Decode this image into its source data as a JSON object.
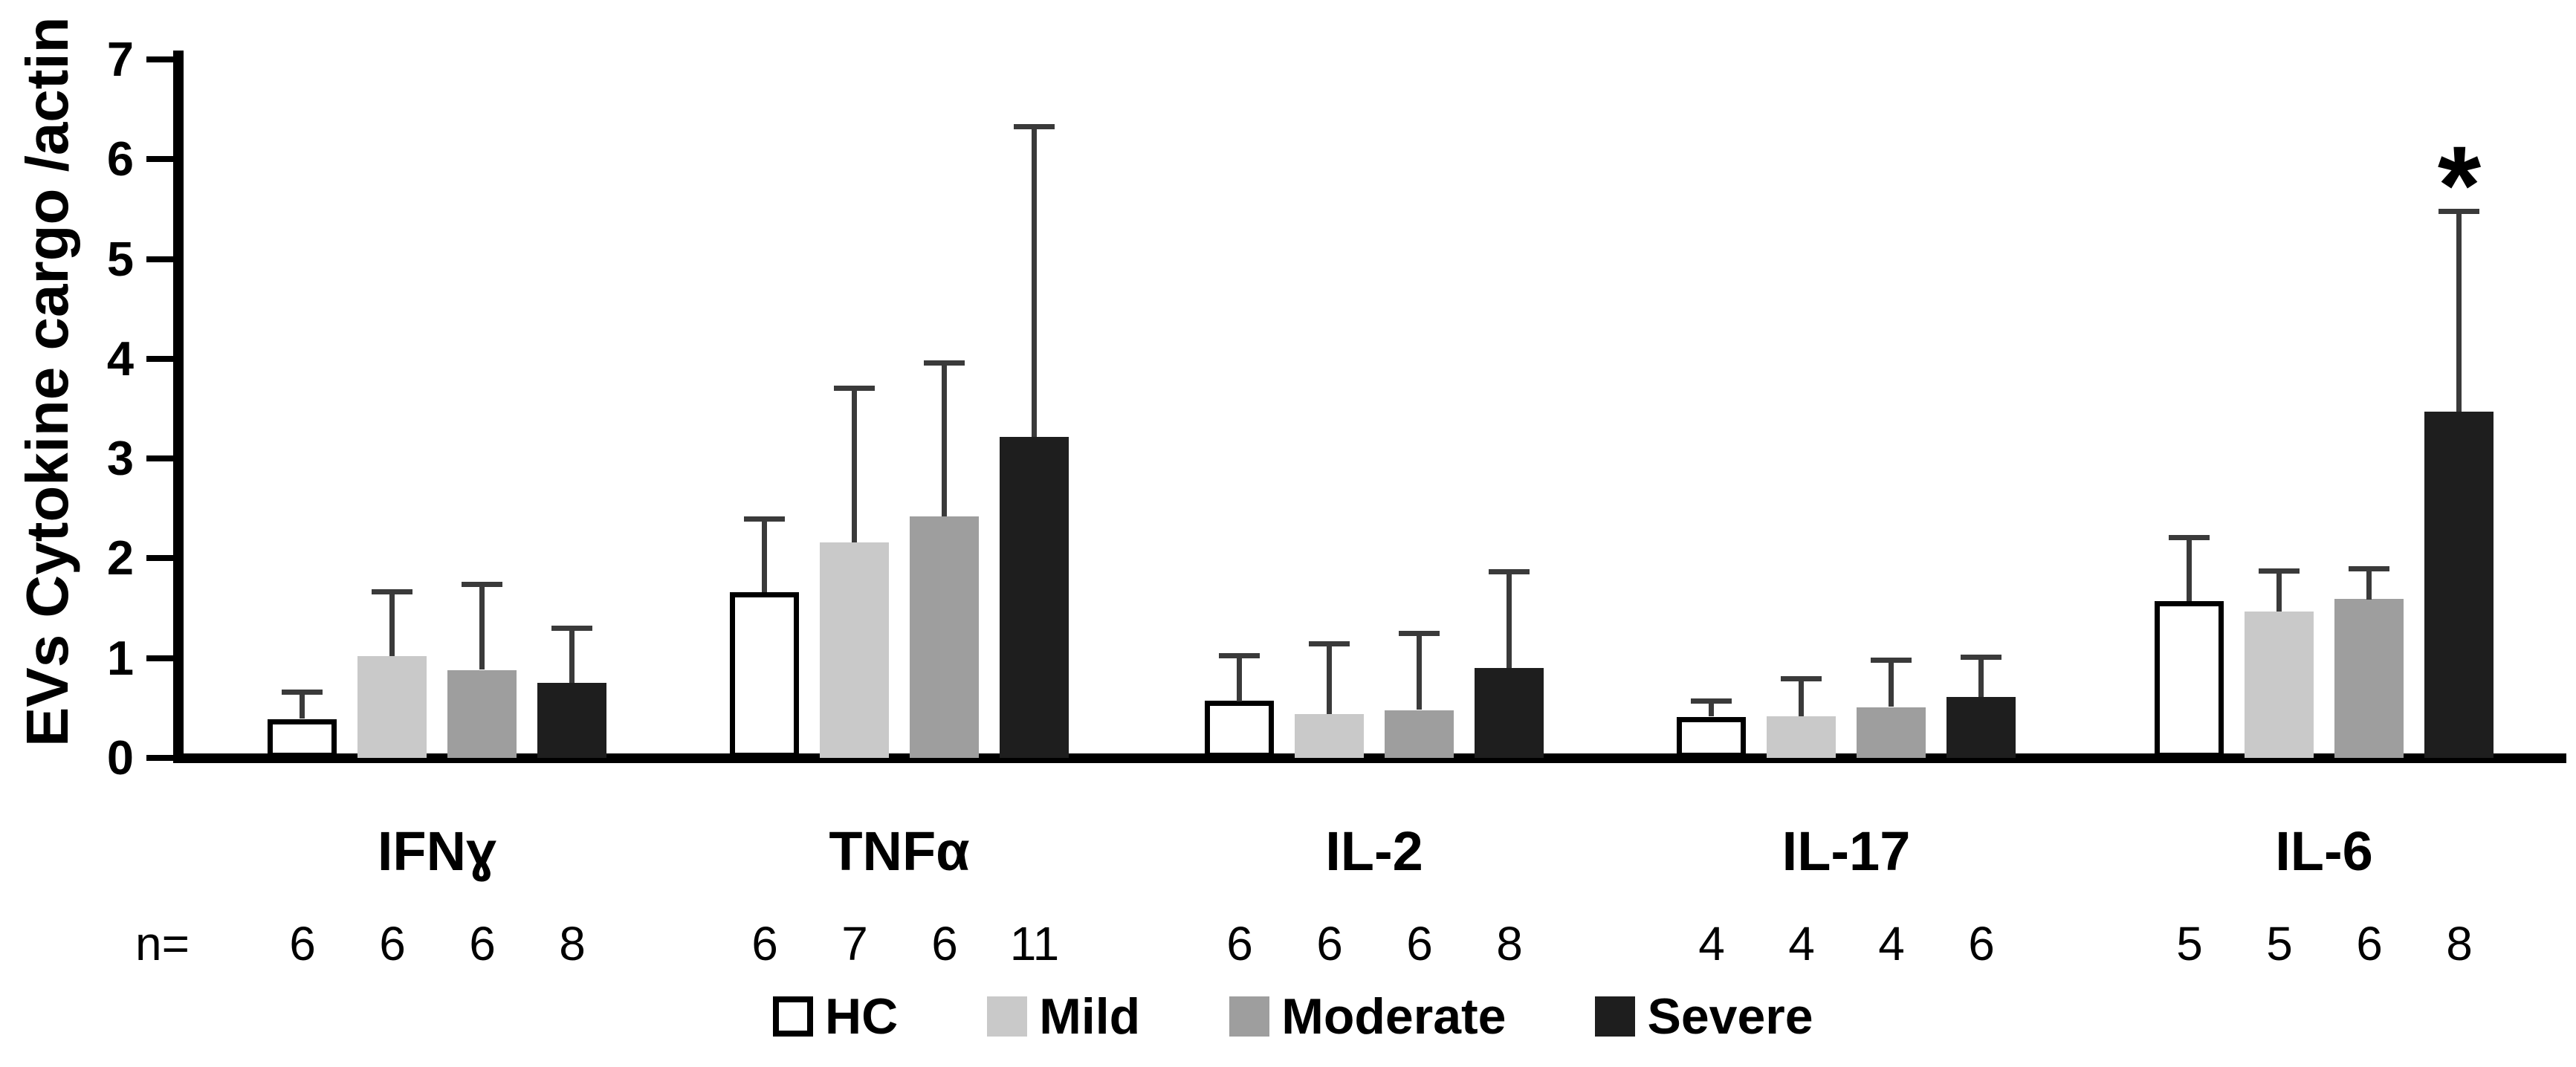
{
  "chart_data": {
    "type": "bar",
    "title": "",
    "xlabel": "",
    "ylabel": "EVs Cytokine cargo /actin",
    "ylim": [
      0,
      7
    ],
    "yticks": [
      0,
      1,
      2,
      3,
      4,
      5,
      6,
      7
    ],
    "grid": false,
    "legend_position": "bottom-center",
    "categories": [
      "IFNɣ",
      "TNFα",
      "IL-2",
      "IL-17",
      "IL-6"
    ],
    "series": [
      {
        "name": "HC",
        "fill": "#ffffff",
        "border": "#000000",
        "pattern": "none",
        "values": [
          0.39,
          1.66,
          0.57,
          0.41,
          1.57
        ],
        "errors_up": [
          0.27,
          0.74,
          0.46,
          0.16,
          0.64
        ]
      },
      {
        "name": "Mild",
        "fill": "#c9c9c9",
        "border": "#c9c9c9",
        "pattern": "crosshatch",
        "values": [
          1.02,
          2.16,
          0.44,
          0.42,
          1.47
        ],
        "errors_up": [
          0.65,
          1.55,
          0.71,
          0.38,
          0.41
        ]
      },
      {
        "name": "Moderate",
        "fill": "#9e9e9e",
        "border": "#9e9e9e",
        "pattern": "dots",
        "values": [
          0.88,
          2.42,
          0.48,
          0.51,
          1.59
        ],
        "errors_up": [
          0.86,
          1.54,
          0.77,
          0.47,
          0.31
        ]
      },
      {
        "name": "Severe",
        "fill": "#1e1e1e",
        "border": "#1e1e1e",
        "pattern": "none",
        "values": [
          0.75,
          3.22,
          0.9,
          0.61,
          3.47
        ],
        "errors_up": [
          0.55,
          3.11,
          0.97,
          0.4,
          2.01
        ]
      }
    ],
    "error_bar_color": "#3a3a3a",
    "axis_color": "#000000",
    "n_label": "n=",
    "n_values": [
      [
        6,
        6,
        6,
        8
      ],
      [
        6,
        7,
        6,
        11
      ],
      [
        6,
        6,
        6,
        8
      ],
      [
        4,
        4,
        4,
        6
      ],
      [
        5,
        5,
        6,
        8
      ]
    ],
    "annotations": [
      {
        "category": "IL-6",
        "series": "Severe",
        "text": "*"
      }
    ]
  }
}
